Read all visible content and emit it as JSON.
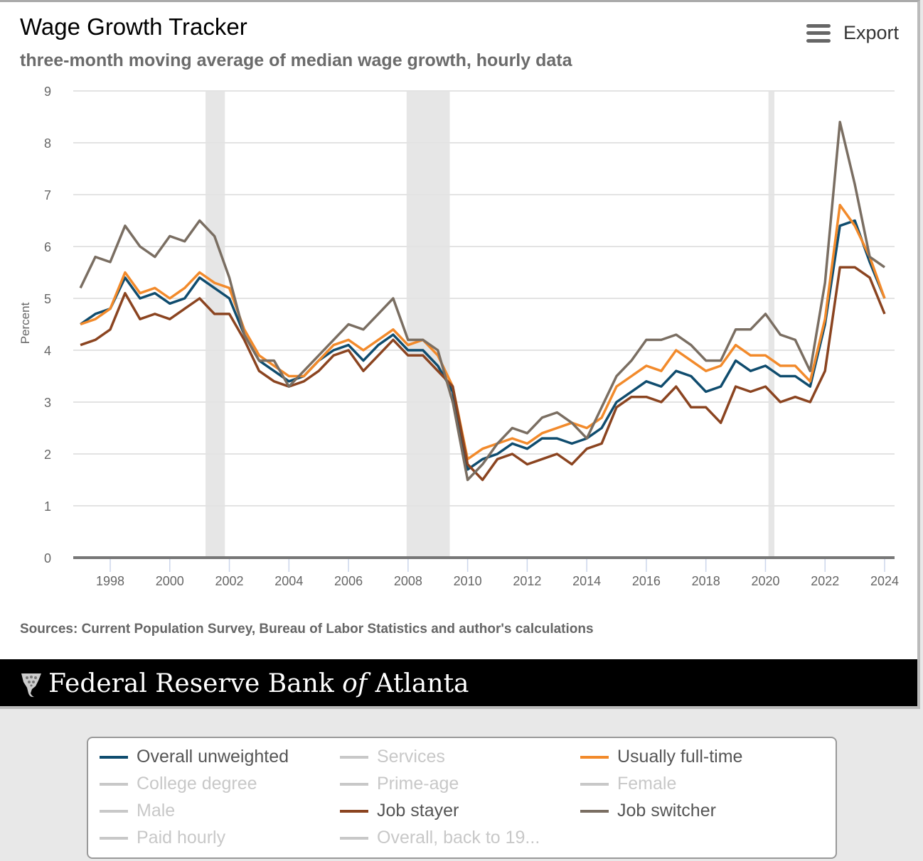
{
  "header": {
    "title": "Wage Growth Tracker",
    "subtitle": "three-month moving average of median wage growth, hourly data",
    "export_label": "Export"
  },
  "footer": {
    "sources": "Sources: Current Population Survey, Bureau of Labor Statistics and author's calculations",
    "bank_name_pre": "Federal Reserve Bank ",
    "bank_name_of": "of",
    "bank_name_post": " Atlanta"
  },
  "legend": {
    "items": [
      {
        "label": "Overall unweighted",
        "color": "#0f4c6e",
        "active": true
      },
      {
        "label": "Services",
        "color": "#c8c8c8",
        "active": false
      },
      {
        "label": "Usually full-time",
        "color": "#f28a2b",
        "active": true
      },
      {
        "label": "College degree",
        "color": "#c8c8c8",
        "active": false
      },
      {
        "label": "Prime-age",
        "color": "#c8c8c8",
        "active": false
      },
      {
        "label": "Female",
        "color": "#c8c8c8",
        "active": false
      },
      {
        "label": "Male",
        "color": "#c8c8c8",
        "active": false
      },
      {
        "label": "Job stayer",
        "color": "#8b4420",
        "active": true
      },
      {
        "label": "Job switcher",
        "color": "#7a6e62",
        "active": true
      },
      {
        "label": "Paid hourly",
        "color": "#c8c8c8",
        "active": false
      },
      {
        "label": "Overall, back to 19...",
        "color": "#c8c8c8",
        "active": false
      }
    ]
  },
  "chart_data": {
    "type": "line",
    "title": "Wage Growth Tracker",
    "subtitle": "three-month moving average of median wage growth, hourly data",
    "xlabel": "",
    "ylabel": "Percent",
    "xlim": [
      1997,
      2024.1
    ],
    "ylim": [
      0,
      9
    ],
    "yticks": [
      "0",
      "1",
      "2",
      "3",
      "4",
      "5",
      "6",
      "7",
      "8",
      "9"
    ],
    "xticks": [
      "1998",
      "2000",
      "2002",
      "2004",
      "2006",
      "2008",
      "2010",
      "2012",
      "2014",
      "2016",
      "2018",
      "2020",
      "2022",
      "2024"
    ],
    "grid": true,
    "legend_placement": "bottom",
    "recessions": [
      [
        2001.2,
        2001.85
      ],
      [
        2007.95,
        2009.4
      ],
      [
        2020.1,
        2020.3
      ]
    ],
    "x": [
      1997.0,
      1997.5,
      1998.0,
      1998.5,
      1999.0,
      1999.5,
      2000.0,
      2000.5,
      2001.0,
      2001.5,
      2002.0,
      2002.5,
      2003.0,
      2003.5,
      2004.0,
      2004.5,
      2005.0,
      2005.5,
      2006.0,
      2006.5,
      2007.0,
      2007.5,
      2008.0,
      2008.5,
      2009.0,
      2009.5,
      2010.0,
      2010.5,
      2011.0,
      2011.5,
      2012.0,
      2012.5,
      2013.0,
      2013.5,
      2014.0,
      2014.5,
      2015.0,
      2015.5,
      2016.0,
      2016.5,
      2017.0,
      2017.5,
      2018.0,
      2018.5,
      2019.0,
      2019.5,
      2020.0,
      2020.5,
      2021.0,
      2021.5,
      2022.0,
      2022.5,
      2023.0,
      2023.5,
      2024.0
    ],
    "series": [
      {
        "name": "Overall unweighted",
        "color": "#0f4c6e",
        "values": [
          4.5,
          4.7,
          4.8,
          5.4,
          5.0,
          5.1,
          4.9,
          5.0,
          5.4,
          5.2,
          5.0,
          4.3,
          3.8,
          3.6,
          3.4,
          3.5,
          3.8,
          4.0,
          4.1,
          3.8,
          4.1,
          4.3,
          4.0,
          4.0,
          3.7,
          3.2,
          1.7,
          1.9,
          2.0,
          2.2,
          2.1,
          2.3,
          2.3,
          2.2,
          2.3,
          2.5,
          3.0,
          3.2,
          3.4,
          3.3,
          3.6,
          3.5,
          3.2,
          3.3,
          3.8,
          3.6,
          3.7,
          3.5,
          3.5,
          3.3,
          4.5,
          6.4,
          6.5,
          5.7,
          5.0
        ]
      },
      {
        "name": "Usually full-time",
        "color": "#f28a2b",
        "values": [
          4.5,
          4.6,
          4.8,
          5.5,
          5.1,
          5.2,
          5.0,
          5.2,
          5.5,
          5.3,
          5.2,
          4.4,
          3.9,
          3.7,
          3.5,
          3.5,
          3.8,
          4.1,
          4.2,
          4.0,
          4.2,
          4.4,
          4.1,
          4.2,
          3.9,
          3.3,
          1.9,
          2.1,
          2.2,
          2.3,
          2.2,
          2.4,
          2.5,
          2.6,
          2.5,
          2.7,
          3.3,
          3.5,
          3.7,
          3.6,
          4.0,
          3.8,
          3.6,
          3.7,
          4.1,
          3.9,
          3.9,
          3.7,
          3.7,
          3.4,
          4.6,
          6.8,
          6.4,
          5.8,
          5.0
        ]
      },
      {
        "name": "Job stayer",
        "color": "#8b4420",
        "values": [
          4.1,
          4.2,
          4.4,
          5.1,
          4.6,
          4.7,
          4.6,
          4.8,
          5.0,
          4.7,
          4.7,
          4.2,
          3.6,
          3.4,
          3.3,
          3.4,
          3.6,
          3.9,
          4.0,
          3.6,
          3.9,
          4.2,
          3.9,
          3.9,
          3.6,
          3.3,
          1.8,
          1.5,
          1.9,
          2.0,
          1.8,
          1.9,
          2.0,
          1.8,
          2.1,
          2.2,
          2.9,
          3.1,
          3.1,
          3.0,
          3.3,
          2.9,
          2.9,
          2.6,
          3.3,
          3.2,
          3.3,
          3.0,
          3.1,
          3.0,
          3.6,
          5.6,
          5.6,
          5.4,
          4.7
        ]
      },
      {
        "name": "Job switcher",
        "color": "#7a6e62",
        "values": [
          5.2,
          5.8,
          5.7,
          6.4,
          6.0,
          5.8,
          6.2,
          6.1,
          6.5,
          6.2,
          5.4,
          4.3,
          3.8,
          3.8,
          3.3,
          3.6,
          3.9,
          4.2,
          4.5,
          4.4,
          4.7,
          5.0,
          4.2,
          4.2,
          4.0,
          3.0,
          1.5,
          1.8,
          2.2,
          2.5,
          2.4,
          2.7,
          2.8,
          2.6,
          2.3,
          2.9,
          3.5,
          3.8,
          4.2,
          4.2,
          4.3,
          4.1,
          3.8,
          3.8,
          4.4,
          4.4,
          4.7,
          4.3,
          4.2,
          3.6,
          5.3,
          8.4,
          7.2,
          5.8,
          5.6
        ]
      }
    ]
  }
}
